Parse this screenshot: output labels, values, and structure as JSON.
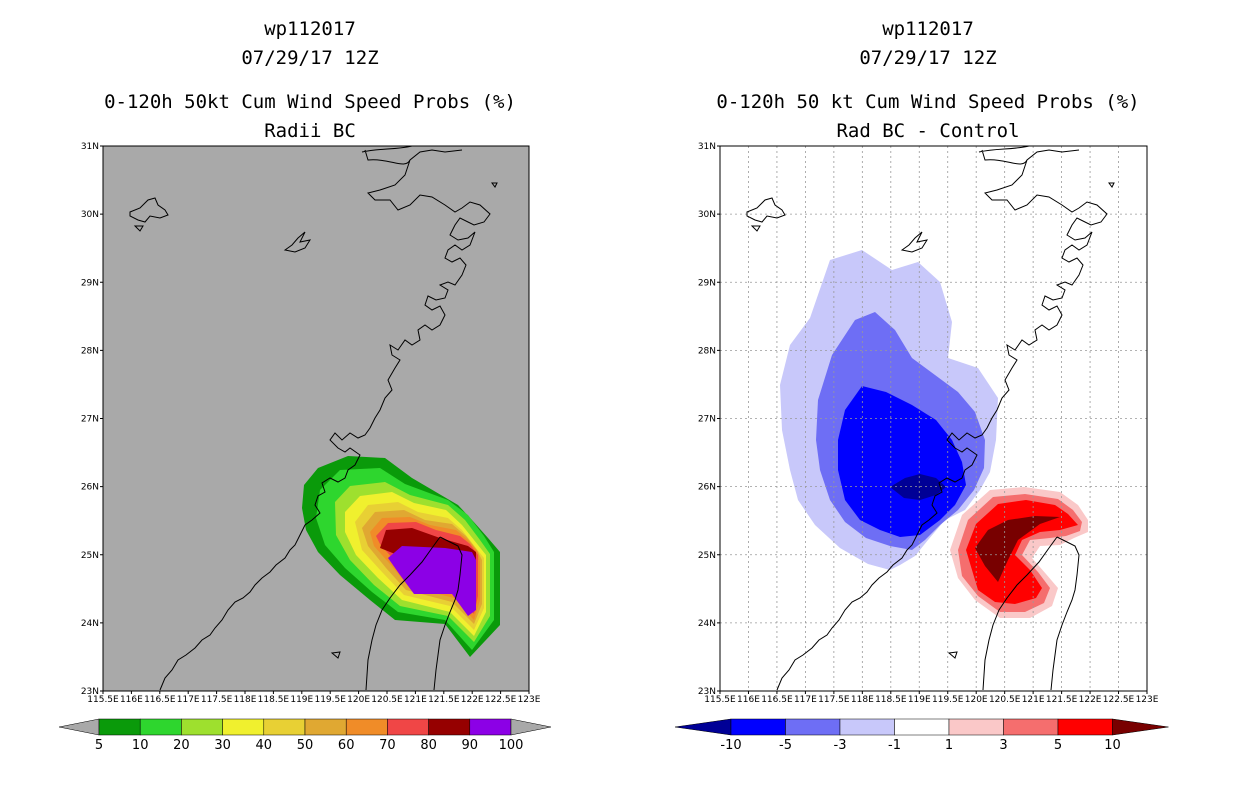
{
  "left_panel": {
    "storm_id": "wp112017",
    "date": "07/29/17 12Z",
    "title": "0-120h 50kt Cum Wind Speed Probs (%)",
    "subtitle": "Radii BC",
    "background_color": "#a9a9a9",
    "colorbar": {
      "labels": [
        "5",
        "10",
        "20",
        "30",
        "40",
        "50",
        "60",
        "70",
        "80",
        "90",
        "100"
      ],
      "colors": [
        "#0a9a0a",
        "#2ed62e",
        "#9ee02e",
        "#f0f02e",
        "#e8d034",
        "#e0a832",
        "#f08c28",
        "#f04646",
        "#960000",
        "#8c00e6"
      ]
    }
  },
  "right_panel": {
    "storm_id": "wp112017",
    "date": "07/29/17 12Z",
    "title": "0-120h 50 kt Cum Wind Speed Probs (%)",
    "subtitle": "Rad BC - Control",
    "background_color": "#ffffff",
    "colorbar": {
      "labels": [
        "-10",
        "-5",
        "-3",
        "-1",
        "1",
        "3",
        "5",
        "10"
      ],
      "colors": [
        "#000096",
        "#0000ff",
        "#6e6ef5",
        "#c8c8fa",
        "#ffffff",
        "#fac8c8",
        "#f56e6e",
        "#ff0000",
        "#780000"
      ]
    }
  },
  "axes": {
    "lat_labels": [
      "31N",
      "30N",
      "29N",
      "28N",
      "27N",
      "26N",
      "25N",
      "24N",
      "23N"
    ],
    "lon_labels": [
      "115.5E",
      "116E",
      "116.5E",
      "117E",
      "117.5E",
      "118E",
      "118.5E",
      "119E",
      "119.5E",
      "120E",
      "120.5E",
      "121E",
      "121.5E",
      "122E",
      "122.5E",
      "123E"
    ],
    "lon_range": [
      115.5,
      123
    ],
    "lat_range": [
      23,
      31
    ]
  }
}
